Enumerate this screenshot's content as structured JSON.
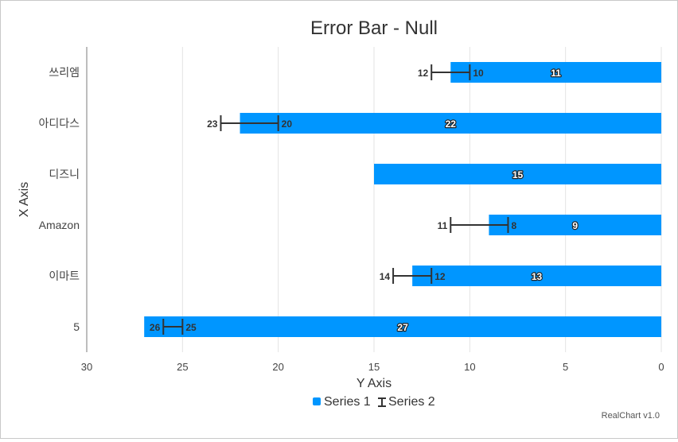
{
  "chart_data": {
    "type": "bar",
    "orientation": "horizontal",
    "title": "Error Bar - Null",
    "xlabel": "X Axis",
    "ylabel": "Y Axis",
    "categories": [
      "쓰리엠",
      "아디다스",
      "디즈니",
      "Amazon",
      "이마트",
      "5"
    ],
    "value_axis": {
      "range": [
        0,
        30
      ],
      "reversed": true,
      "ticks": [
        30,
        25,
        20,
        15,
        10,
        5,
        0
      ],
      "grid": true
    },
    "series": [
      {
        "name": "Series 1",
        "type": "bar",
        "color": "#0096FF",
        "values": [
          11,
          22,
          15,
          9,
          13,
          27
        ]
      },
      {
        "name": "Series 2",
        "type": "errorbar",
        "color": "#333333",
        "low": [
          10,
          20,
          null,
          8,
          12,
          25
        ],
        "high": [
          12,
          23,
          null,
          11,
          14,
          26
        ]
      }
    ],
    "legend": {
      "position": "bottom",
      "items": [
        "Series 1",
        "Series 2"
      ]
    }
  },
  "credit": "RealChart v1.0"
}
